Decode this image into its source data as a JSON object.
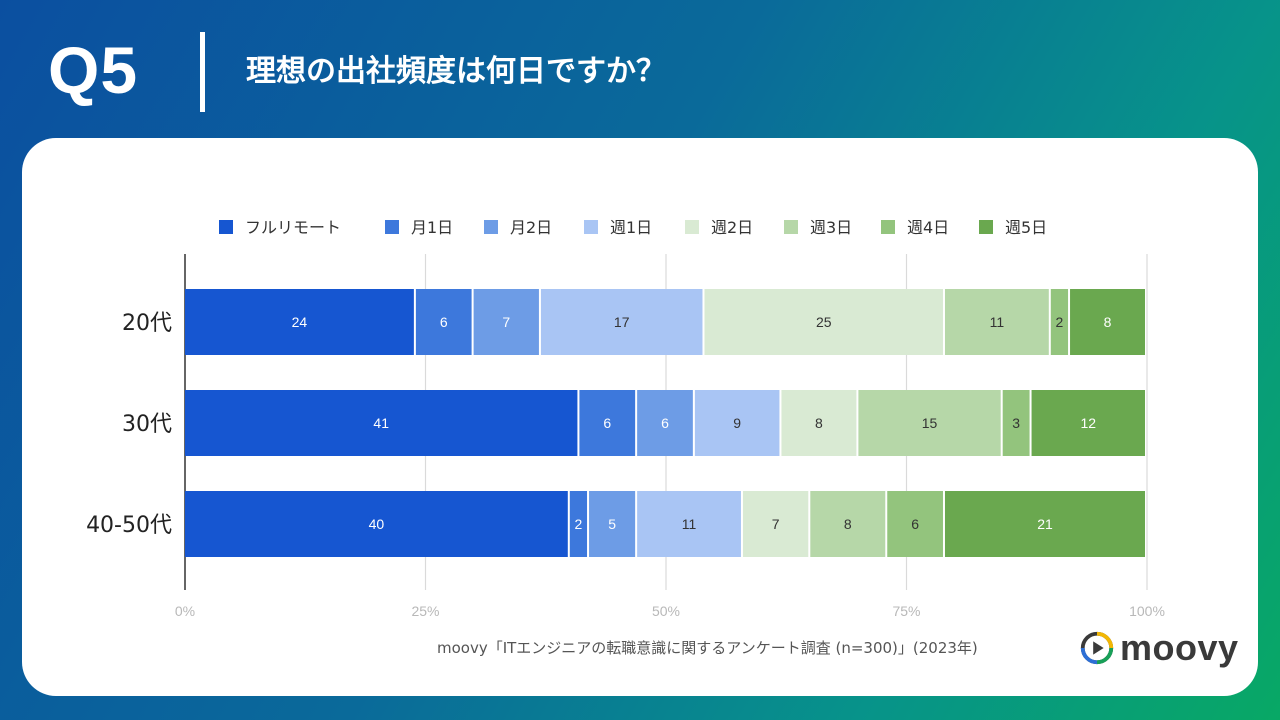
{
  "header": {
    "question_label": "Q5",
    "question_text": "理想の出社頻度は何日ですか？"
  },
  "chart_data": {
    "type": "bar",
    "orientation": "horizontal",
    "stacked": "percent",
    "categories": [
      "20代",
      "30代",
      "40-50代"
    ],
    "series": [
      {
        "name": "フルリモート",
        "color": "#1656d1",
        "values": [
          24,
          41,
          40
        ]
      },
      {
        "name": "月1日",
        "color": "#3d78dc",
        "values": [
          6,
          6,
          2
        ]
      },
      {
        "name": "月2日",
        "color": "#6d9ce6",
        "values": [
          7,
          6,
          5
        ]
      },
      {
        "name": "週1日",
        "color": "#a9c5f4",
        "values": [
          17,
          9,
          11
        ]
      },
      {
        "name": "週2日",
        "color": "#d9ead3",
        "values": [
          25,
          8,
          7
        ]
      },
      {
        "name": "週3日",
        "color": "#b6d7a8",
        "values": [
          11,
          15,
          8
        ]
      },
      {
        "name": "週4日",
        "color": "#93c47d",
        "values": [
          2,
          3,
          6
        ]
      },
      {
        "name": "週5日",
        "color": "#6aa84f",
        "values": [
          8,
          12,
          21
        ]
      }
    ],
    "xaxis_ticks": [
      "0%",
      "25%",
      "50%",
      "75%",
      "100%"
    ],
    "xlim": [
      0,
      100
    ],
    "legend_position": "top",
    "gridlines": true
  },
  "footer": {
    "source": "moovy「ITエンジニアの転職意識に関するアンケート調査 (n=300)」(2023年)",
    "logo_text": "moovy"
  }
}
